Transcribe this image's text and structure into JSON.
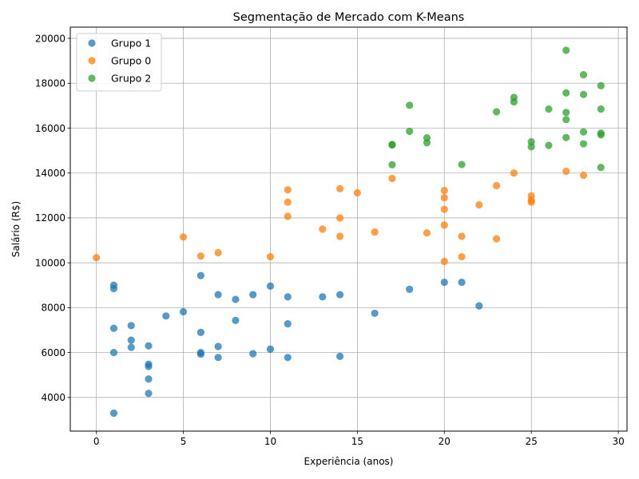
{
  "chart_data": {
    "type": "scatter",
    "title": "Segmentação de Mercado com K-Means",
    "xlabel": "Experiência (anos)",
    "ylabel": "Salário (R$)",
    "xlim": [
      -1.5,
      30.5
    ],
    "ylim": [
      2500,
      20500
    ],
    "xticks": [
      0,
      5,
      10,
      15,
      20,
      25,
      30
    ],
    "yticks": [
      4000,
      6000,
      8000,
      10000,
      12000,
      14000,
      16000,
      18000,
      20000
    ],
    "grid": true,
    "legend_position": "top-left",
    "series": [
      {
        "name": "Grupo 1",
        "color": "#1f77b4",
        "points": [
          [
            1,
            9000
          ],
          [
            1,
            8850
          ],
          [
            1,
            7080
          ],
          [
            1,
            6000
          ],
          [
            1,
            3300
          ],
          [
            2,
            7200
          ],
          [
            2,
            6550
          ],
          [
            2,
            6230
          ],
          [
            3,
            6300
          ],
          [
            3,
            5480
          ],
          [
            3,
            5380
          ],
          [
            3,
            4820
          ],
          [
            3,
            4180
          ],
          [
            4,
            7630
          ],
          [
            5,
            7820
          ],
          [
            6,
            9430
          ],
          [
            6,
            6900
          ],
          [
            6,
            6000
          ],
          [
            6,
            5930
          ],
          [
            7,
            8580
          ],
          [
            7,
            6270
          ],
          [
            7,
            5780
          ],
          [
            8,
            8370
          ],
          [
            8,
            7430
          ],
          [
            9,
            8580
          ],
          [
            9,
            5950
          ],
          [
            10,
            8960
          ],
          [
            10,
            6150
          ],
          [
            11,
            8480
          ],
          [
            11,
            7280
          ],
          [
            11,
            5780
          ],
          [
            13,
            8480
          ],
          [
            14,
            8580
          ],
          [
            14,
            5830
          ],
          [
            16,
            7750
          ],
          [
            18,
            8820
          ],
          [
            20,
            9130
          ],
          [
            21,
            9130
          ],
          [
            22,
            8080
          ]
        ]
      },
      {
        "name": "Grupo 0",
        "color": "#ff7f0e",
        "points": [
          [
            0,
            10230
          ],
          [
            5,
            11150
          ],
          [
            6,
            10300
          ],
          [
            7,
            10450
          ],
          [
            10,
            10270
          ],
          [
            11,
            13250
          ],
          [
            11,
            12700
          ],
          [
            11,
            12070
          ],
          [
            13,
            11500
          ],
          [
            14,
            13300
          ],
          [
            14,
            12000
          ],
          [
            14,
            11180
          ],
          [
            15,
            13120
          ],
          [
            16,
            11370
          ],
          [
            17,
            13760
          ],
          [
            19,
            11330
          ],
          [
            20,
            13220
          ],
          [
            20,
            12900
          ],
          [
            20,
            12380
          ],
          [
            20,
            11680
          ],
          [
            20,
            10060
          ],
          [
            21,
            11180
          ],
          [
            21,
            10270
          ],
          [
            22,
            12580
          ],
          [
            23,
            13440
          ],
          [
            23,
            11070
          ],
          [
            24,
            14000
          ],
          [
            25,
            12980
          ],
          [
            25,
            12800
          ],
          [
            25,
            12700
          ],
          [
            27,
            14080
          ],
          [
            28,
            13900
          ]
        ]
      },
      {
        "name": "Grupo 2",
        "color": "#2ca02c",
        "points": [
          [
            17,
            15270
          ],
          [
            17,
            15250
          ],
          [
            17,
            14370
          ],
          [
            18,
            17020
          ],
          [
            18,
            15860
          ],
          [
            19,
            15570
          ],
          [
            19,
            15350
          ],
          [
            21,
            14380
          ],
          [
            23,
            16730
          ],
          [
            24,
            17370
          ],
          [
            24,
            17170
          ],
          [
            25,
            15390
          ],
          [
            25,
            15170
          ],
          [
            26,
            16850
          ],
          [
            26,
            15230
          ],
          [
            27,
            19470
          ],
          [
            27,
            17570
          ],
          [
            27,
            16700
          ],
          [
            27,
            16380
          ],
          [
            27,
            15580
          ],
          [
            28,
            18380
          ],
          [
            28,
            17500
          ],
          [
            28,
            15830
          ],
          [
            28,
            15300
          ],
          [
            29,
            17890
          ],
          [
            29,
            16850
          ],
          [
            29,
            15780
          ],
          [
            29,
            15700
          ],
          [
            29,
            14250
          ]
        ]
      }
    ]
  }
}
